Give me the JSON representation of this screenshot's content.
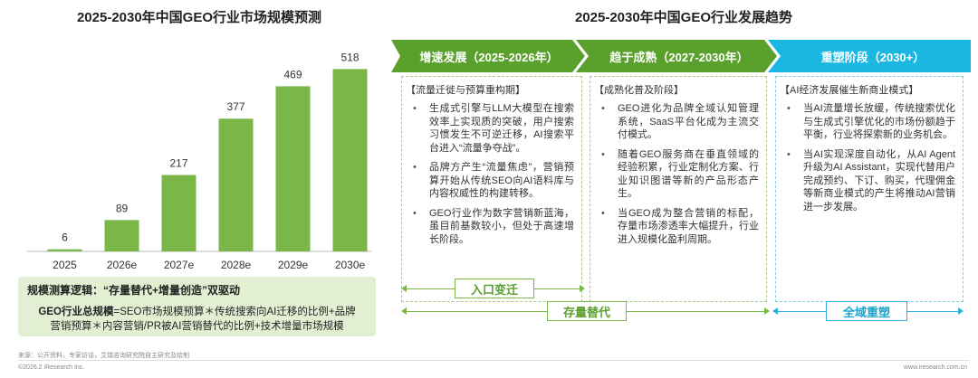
{
  "left_title": "2025-2030年中国GEO行业市场规模预测",
  "right_title": "2025-2030年中国GEO行业发展趋势",
  "chart_data": {
    "type": "bar",
    "title": "2025-2030年中国GEO行业市场规模预测",
    "categories": [
      "2025",
      "2026e",
      "2027e",
      "2028e",
      "2029e",
      "2030e"
    ],
    "values": [
      6,
      89,
      217,
      377,
      469,
      518
    ],
    "ylim": [
      0,
      560
    ],
    "color": "#7ab648",
    "grid": false
  },
  "logic": {
    "heading": "规模测算逻辑：“存量替代+增量创造”双驱动",
    "formula_bold": "GEO行业总规模",
    "formula_line1": "=SEO市场规模预算＊传统搜索向AI迁移的比例+品牌",
    "formula_line2": "营销预算＊内容营销/PR被AI营销替代的比例+技术增量市场规模"
  },
  "phases": [
    {
      "label": "增速发展（2025-2026年）",
      "color": "#5aa02c",
      "heading": "【流量迁徙与预算重构期】",
      "items": [
        "生成式引擎与LLM大模型在搜索效率上实现质的突破，用户搜索习惯发生不可逆迁移，AI搜索平台进入“流量争夺战”。",
        "品牌方产生“流量焦虑”，营销预算开始从传统SEO向AI语料库与内容权威性的构建转移。",
        "GEO行业作为数字营销新蓝海，虽目前基数较小，但处于高速增长阶段。"
      ]
    },
    {
      "label": "趋于成熟（2027-2030年）",
      "color": "#5aa02c",
      "heading": "【成熟化普及阶段】",
      "items": [
        "GEO进化为品牌全域认知管理系统，SaaS平台化成为主流交付模式。",
        "随着GEO服务商在垂直领域的经验积累，行业定制化方案、行业知识图谱等新的产品形态产生。",
        "当GEO成为整合营销的标配，存量市场渗透率大幅提升，行业进入规模化盈利周期。"
      ]
    },
    {
      "label": "重塑阶段（2030+）",
      "color": "#1aa4d0",
      "heading": "【AI经济发展催生新商业模式】",
      "items": [
        "当AI流量增长放缓，传统搜索优化与生成式引擎优化的市场份额趋于平衡，行业将探索新的业务机会。",
        "当AI实现深度自动化，从AI Agent升级为AI Assistant，实现代替用户完成预约、下订、购买，代理佣金等新商业模式的产生将推动AI营销进一步发展。"
      ]
    }
  ],
  "tags": {
    "entry": "入口变迁",
    "stock": "存量替代",
    "domain": "全域重塑"
  },
  "footer": {
    "source": "来源：公开资料，专家访谈，艾瑞咨询研究院自主研究及绘制",
    "copyright": "©2026.2 iResearch Inc.",
    "url": "www.iresearch.com.cn"
  }
}
